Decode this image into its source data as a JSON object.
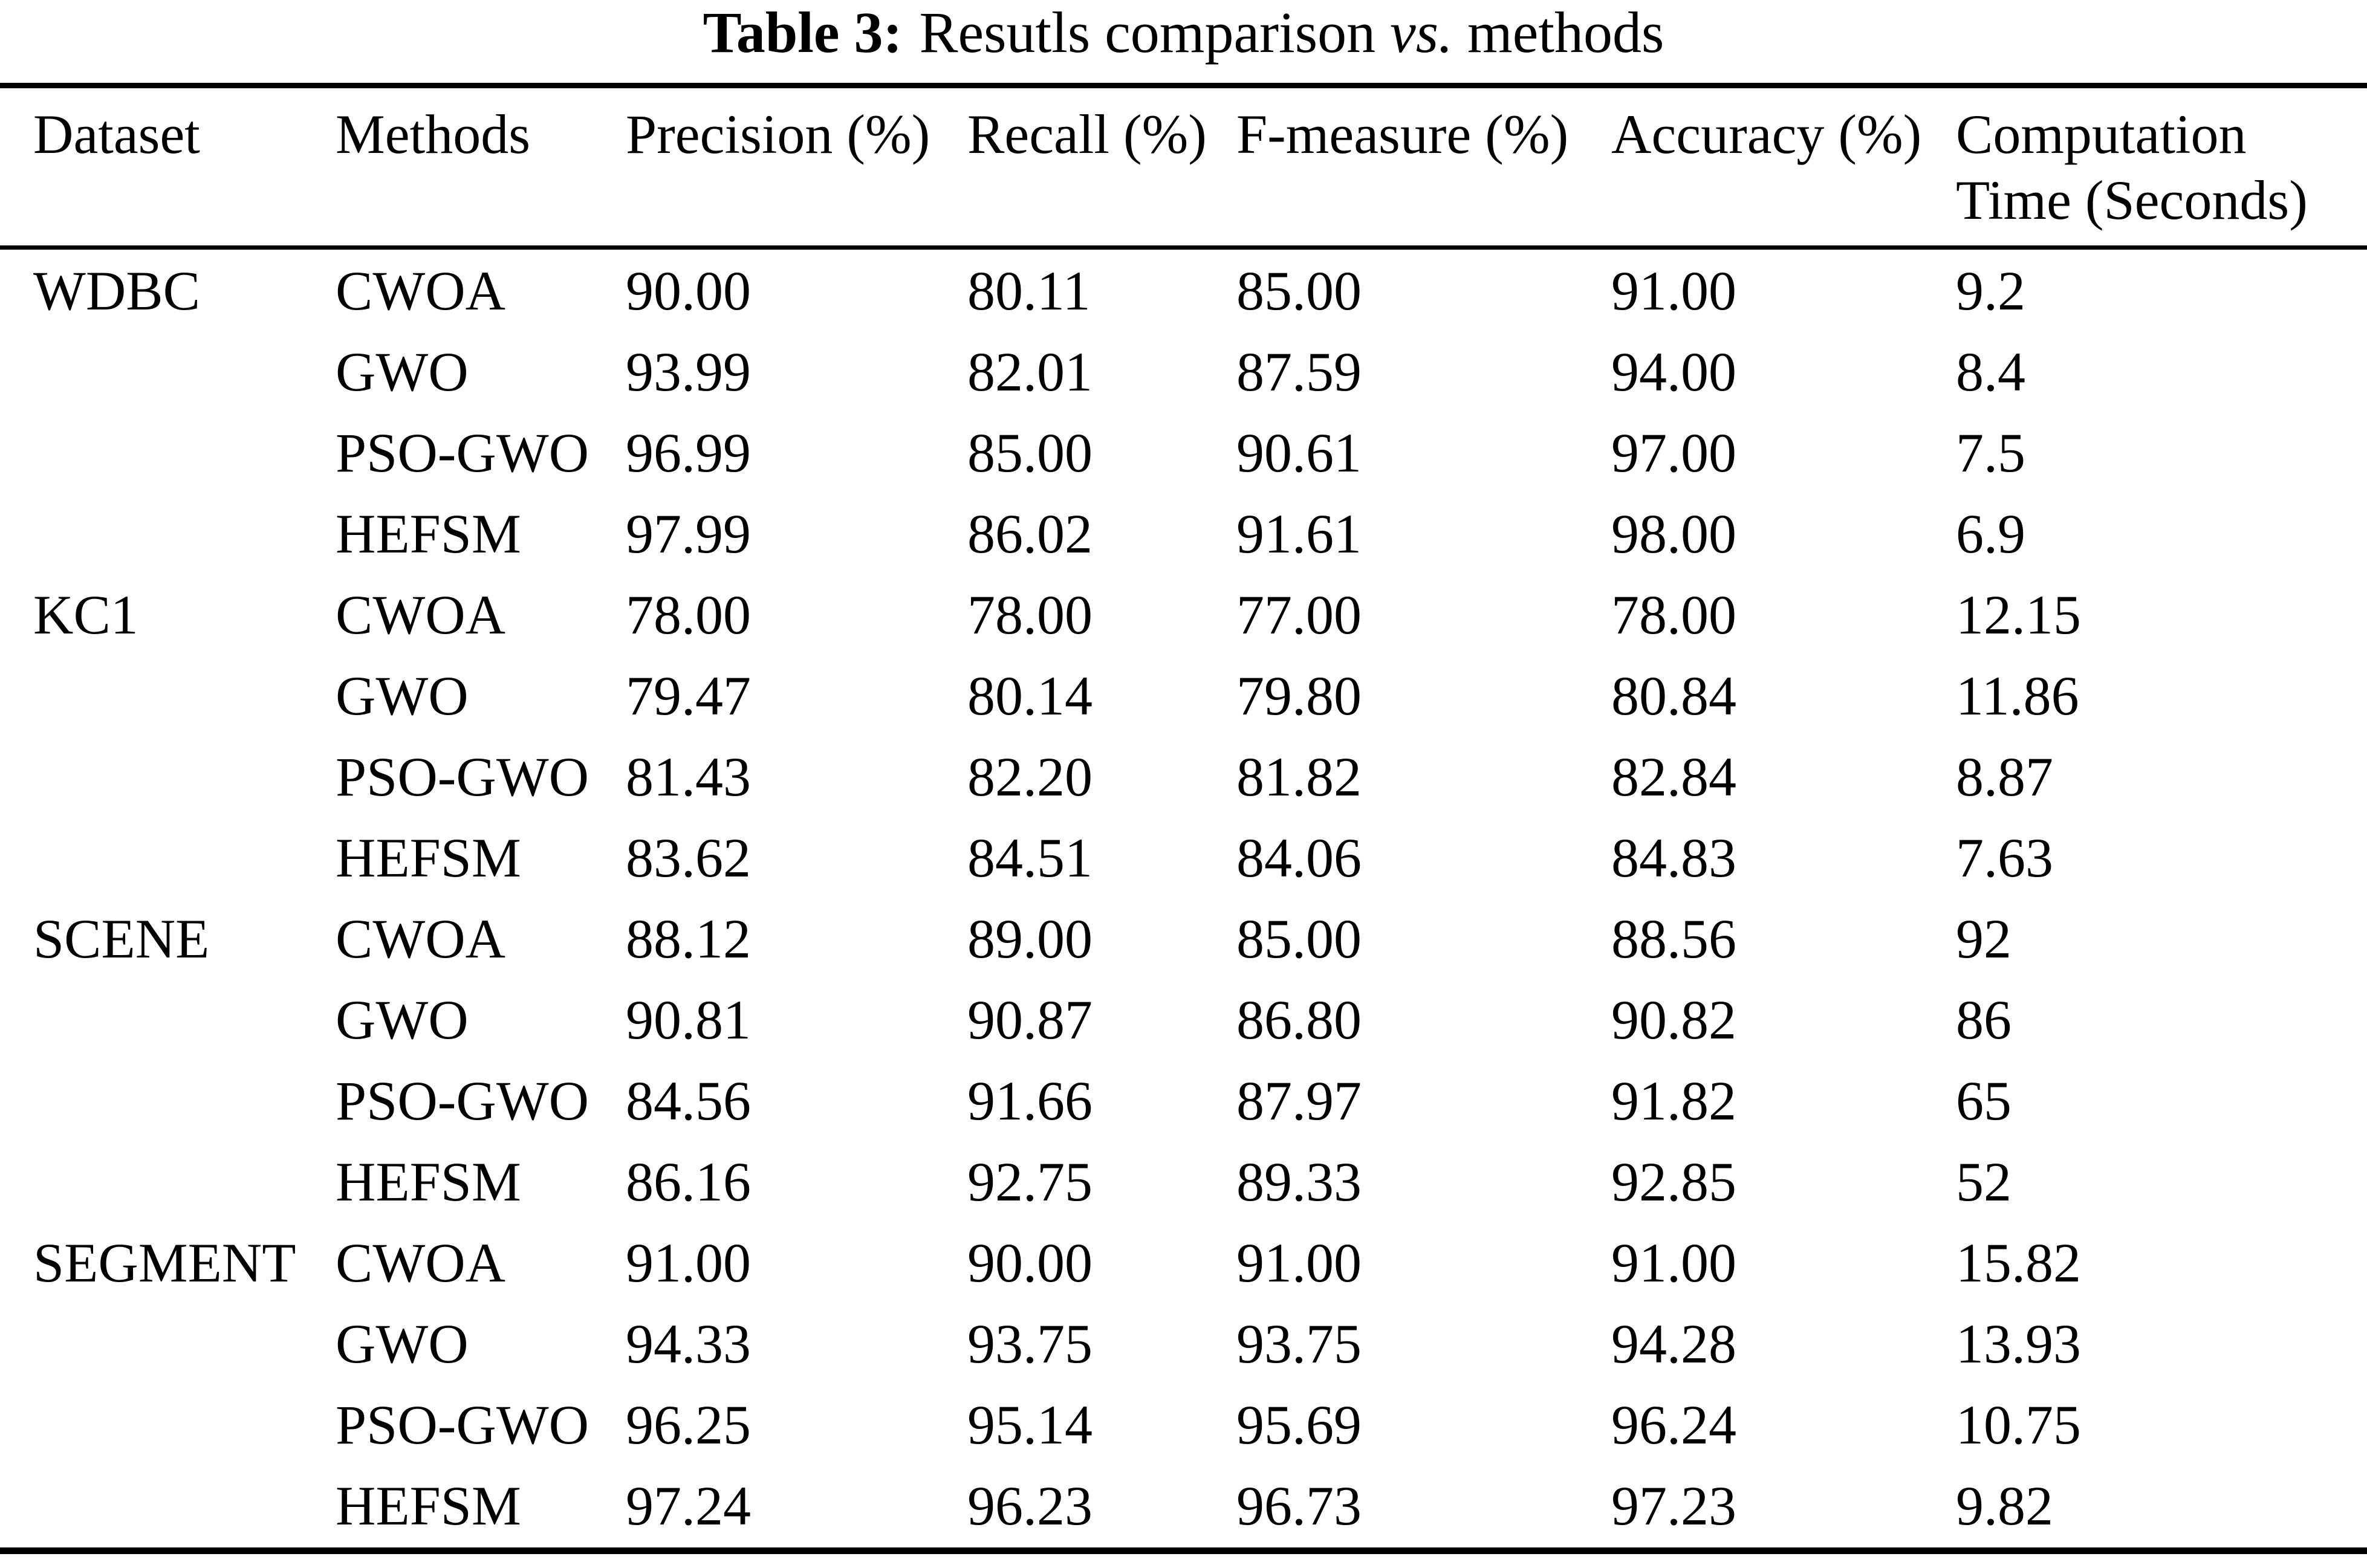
{
  "caption": {
    "label": "Table 3:",
    "text_before_vs": "Resutls comparison",
    "vs": "vs.",
    "text_after_vs": "methods"
  },
  "table": {
    "headers": {
      "dataset": {
        "line1": "Dataset",
        "line2": ""
      },
      "methods": {
        "line1": "Methods",
        "line2": ""
      },
      "precision": {
        "line1": "Precision (%)",
        "line2": ""
      },
      "recall": {
        "line1": "Recall (%)",
        "line2": ""
      },
      "fmeasure": {
        "line1": "F-measure (%)",
        "line2": ""
      },
      "accuracy": {
        "line1": "Accuracy (%)",
        "line2": ""
      },
      "time": {
        "line1": "Computation",
        "line2": "Time (Seconds)"
      }
    },
    "rows": [
      {
        "dataset": "WDBC",
        "method": "CWOA",
        "precision": "90.00",
        "recall": "80.11",
        "fmeasure": "85.00",
        "accuracy": "91.00",
        "time": "9.2"
      },
      {
        "dataset": "",
        "method": "GWO",
        "precision": "93.99",
        "recall": "82.01",
        "fmeasure": "87.59",
        "accuracy": "94.00",
        "time": "8.4"
      },
      {
        "dataset": "",
        "method": "PSO-GWO",
        "precision": "96.99",
        "recall": "85.00",
        "fmeasure": "90.61",
        "accuracy": "97.00",
        "time": "7.5"
      },
      {
        "dataset": "",
        "method": "HEFSM",
        "precision": "97.99",
        "recall": "86.02",
        "fmeasure": "91.61",
        "accuracy": "98.00",
        "time": "6.9"
      },
      {
        "dataset": "KC1",
        "method": "CWOA",
        "precision": "78.00",
        "recall": "78.00",
        "fmeasure": "77.00",
        "accuracy": "78.00",
        "time": "12.15"
      },
      {
        "dataset": "",
        "method": "GWO",
        "precision": "79.47",
        "recall": "80.14",
        "fmeasure": "79.80",
        "accuracy": "80.84",
        "time": "11.86"
      },
      {
        "dataset": "",
        "method": "PSO-GWO",
        "precision": "81.43",
        "recall": "82.20",
        "fmeasure": "81.82",
        "accuracy": "82.84",
        "time": "8.87"
      },
      {
        "dataset": "",
        "method": "HEFSM",
        "precision": "83.62",
        "recall": "84.51",
        "fmeasure": "84.06",
        "accuracy": "84.83",
        "time": "7.63"
      },
      {
        "dataset": "SCENE",
        "method": "CWOA",
        "precision": "88.12",
        "recall": "89.00",
        "fmeasure": "85.00",
        "accuracy": "88.56",
        "time": "92"
      },
      {
        "dataset": "",
        "method": "GWO",
        "precision": "90.81",
        "recall": "90.87",
        "fmeasure": "86.80",
        "accuracy": "90.82",
        "time": "86"
      },
      {
        "dataset": "",
        "method": "PSO-GWO",
        "precision": "84.56",
        "recall": "91.66",
        "fmeasure": "87.97",
        "accuracy": "91.82",
        "time": "65"
      },
      {
        "dataset": "",
        "method": "HEFSM",
        "precision": "86.16",
        "recall": "92.75",
        "fmeasure": "89.33",
        "accuracy": "92.85",
        "time": "52"
      },
      {
        "dataset": "SEGMENT",
        "method": "CWOA",
        "precision": "91.00",
        "recall": "90.00",
        "fmeasure": "91.00",
        "accuracy": "91.00",
        "time": "15.82"
      },
      {
        "dataset": "",
        "method": "GWO",
        "precision": "94.33",
        "recall": "93.75",
        "fmeasure": "93.75",
        "accuracy": "94.28",
        "time": "13.93"
      },
      {
        "dataset": "",
        "method": "PSO-GWO",
        "precision": "96.25",
        "recall": "95.14",
        "fmeasure": "95.69",
        "accuracy": "96.24",
        "time": "10.75"
      },
      {
        "dataset": "",
        "method": "HEFSM",
        "precision": "97.24",
        "recall": "96.23",
        "fmeasure": "96.73",
        "accuracy": "97.23",
        "time": "9.82"
      }
    ]
  }
}
